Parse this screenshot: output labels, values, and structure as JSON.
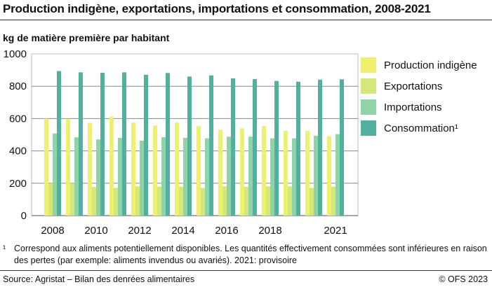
{
  "title": "Production indigène, exportations, importations et consommation, 2008-2021",
  "footnote_marker": "¹",
  "footnote": "Correspond aux aliments potentiellement disponibles. Les quantités effectivement consommées sont inférieures en raison des pertes (par exemple: aliments invendus ou avariés). 2021: provisoire",
  "source": "Source: Agristat – Bilan des denrées alimentaires",
  "copyright": "© OFS 2023",
  "chart_data": {
    "type": "bar",
    "title": "Production indigène, exportations, importations et consommation, 2008-2021",
    "ylabel": "kg de matière première par habitant",
    "xlabel": "",
    "ylim": [
      0,
      1000
    ],
    "yticks": [
      0,
      200,
      400,
      600,
      800,
      1000
    ],
    "grid": true,
    "legend": "right",
    "categories": [
      "2008",
      "2009",
      "2010",
      "2011",
      "2012",
      "2013",
      "2014",
      "2015",
      "2016",
      "2017",
      "2018",
      "2019",
      "2020",
      "2021"
    ],
    "xtick_labels": [
      "2008",
      "",
      "2010",
      "",
      "2012",
      "",
      "2014",
      "",
      "2016",
      "",
      "2018",
      "",
      "",
      "2021"
    ],
    "series": [
      {
        "name": "Production indigène",
        "color": "#f0f070",
        "values": [
          600,
          599,
          574,
          613,
          576,
          558,
          576,
          553,
          531,
          540,
          553,
          524,
          524,
          492
        ]
      },
      {
        "name": "Exportations",
        "color": "#d4e87a",
        "values": [
          200,
          200,
          177,
          172,
          181,
          179,
          179,
          171,
          181,
          178,
          181,
          181,
          172,
          179
        ]
      },
      {
        "name": "Importations",
        "color": "#8fd4a8",
        "values": [
          508,
          484,
          471,
          481,
          464,
          485,
          481,
          478,
          488,
          488,
          478,
          478,
          494,
          504
        ]
      },
      {
        "name": "Consommation¹",
        "color": "#52b09e",
        "values": [
          894,
          886,
          883,
          886,
          871,
          882,
          860,
          867,
          849,
          844,
          833,
          828,
          841,
          843
        ]
      }
    ]
  }
}
